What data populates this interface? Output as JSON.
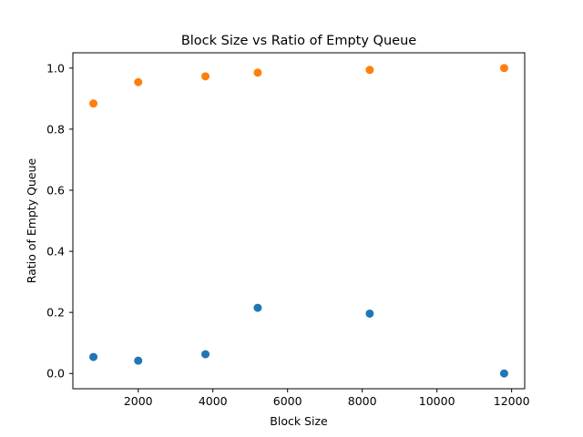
{
  "chart_data": {
    "type": "scatter",
    "title": "Block Size vs Ratio of Empty Queue",
    "xlabel": "Block Size",
    "ylabel": "Ratio of Empty Queue",
    "xlim": [
      250,
      12350
    ],
    "ylim": [
      -0.05,
      1.05
    ],
    "xticks": [
      2000,
      4000,
      6000,
      8000,
      10000,
      12000
    ],
    "xtick_labels": [
      "2000",
      "4000",
      "6000",
      "8000",
      "10000",
      "12000"
    ],
    "yticks": [
      0.0,
      0.2,
      0.4,
      0.6,
      0.8,
      1.0
    ],
    "ytick_labels": [
      "0.0",
      "0.2",
      "0.4",
      "0.6",
      "0.8",
      "1.0"
    ],
    "grid": false,
    "legend": false,
    "series": [
      {
        "name": "series-1",
        "color": "#1f77b4",
        "x": [
          800,
          2000,
          3800,
          5200,
          8200,
          11800
        ],
        "y": [
          0.054,
          0.042,
          0.063,
          0.215,
          0.196,
          0.0
        ]
      },
      {
        "name": "series-2",
        "color": "#ff7f0e",
        "x": [
          800,
          2000,
          3800,
          5200,
          8200,
          11800
        ],
        "y": [
          0.884,
          0.954,
          0.973,
          0.985,
          0.994,
          1.0
        ]
      }
    ]
  }
}
